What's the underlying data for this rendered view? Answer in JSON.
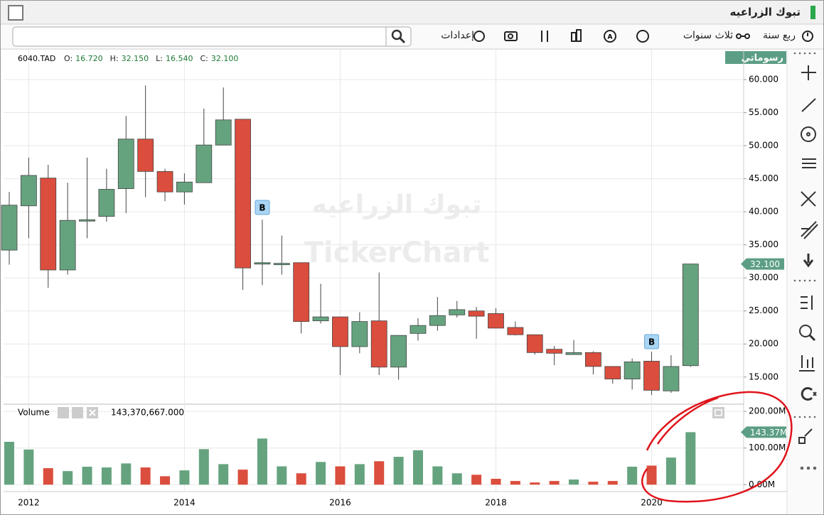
{
  "window": {
    "title": "تبوك الزراعيه"
  },
  "toolbar": {
    "period": "ربع سنة",
    "range": "ثلاث سنوات",
    "settings": "إعدادات"
  },
  "chart_data": [
    {
      "type": "candlestick",
      "symbol": "6040.TAD",
      "info": [
        {
          "label": "O:",
          "value": "16.720"
        },
        {
          "label": "H:",
          "value": "32.150"
        },
        {
          "label": "L:",
          "value": "16.540"
        },
        {
          "label": "C:",
          "value": "32.100"
        }
      ],
      "drawings_label": "رسوماتي",
      "watermark": [
        "تبوك الزراعيه",
        "TickerChart"
      ],
      "signals": [
        "B",
        "B"
      ],
      "last_price_label": "32.100",
      "categories": [
        null,
        "2012",
        null,
        null,
        null,
        null,
        null,
        null,
        null,
        "2014",
        null,
        null,
        null,
        null,
        null,
        null,
        null,
        "2016",
        null,
        null,
        null,
        null,
        null,
        null,
        null,
        "2018",
        null,
        null,
        null,
        null,
        null,
        null,
        null,
        "2020",
        null,
        null
      ],
      "open": [
        34.2,
        40.9,
        45.1,
        31.2,
        38.6,
        39.3,
        43.5,
        51.0,
        46.1,
        43.0,
        44.4,
        50.1,
        54.0,
        32.1,
        32.0,
        32.3,
        23.5,
        24.1,
        19.6,
        23.5,
        16.5,
        21.6,
        22.8,
        24.4,
        25.0,
        24.6,
        22.5,
        21.4,
        19.2,
        18.4,
        18.7,
        16.6,
        14.7,
        17.4,
        12.9,
        16.72
      ],
      "high": [
        43.0,
        48.2,
        47.1,
        44.4,
        48.2,
        46.5,
        54.5,
        59.1,
        46.5,
        45.8,
        55.6,
        58.8,
        54.0,
        38.8,
        36.4,
        32.3,
        29.1,
        24.1,
        24.8,
        30.8,
        21.3,
        23.9,
        27.1,
        26.5,
        25.6,
        25.4,
        23.4,
        21.4,
        19.7,
        20.6,
        18.9,
        16.6,
        17.8,
        18.8,
        18.3,
        32.15
      ],
      "low": [
        32.0,
        36.0,
        28.5,
        30.5,
        36.0,
        38.5,
        39.8,
        42.2,
        41.6,
        41.1,
        44.4,
        50.1,
        28.2,
        28.9,
        30.5,
        21.6,
        23.1,
        15.3,
        18.6,
        15.3,
        14.6,
        20.5,
        22.0,
        24.0,
        20.8,
        22.4,
        21.3,
        18.4,
        16.8,
        18.4,
        15.4,
        14.0,
        13.1,
        12.3,
        12.6,
        16.54
      ],
      "close": [
        41.0,
        45.5,
        31.2,
        38.7,
        38.8,
        43.4,
        51.0,
        46.1,
        43.0,
        44.5,
        50.1,
        53.9,
        31.5,
        32.3,
        32.2,
        23.4,
        24.1,
        19.6,
        23.4,
        16.5,
        21.3,
        22.8,
        24.3,
        25.2,
        24.2,
        22.4,
        21.4,
        18.7,
        18.6,
        18.7,
        16.6,
        14.7,
        17.3,
        13.0,
        16.6,
        32.1
      ],
      "up_color": "#65a37f",
      "down_color": "#db4d3d",
      "ylim": [
        11.0,
        64.3
      ],
      "yticks": [
        {
          "value": 15,
          "label": "15.000"
        },
        {
          "value": 20,
          "label": "20.000"
        },
        {
          "value": 25,
          "label": "25.000"
        },
        {
          "value": 30,
          "label": "30.000"
        },
        {
          "value": 35,
          "label": "35.000"
        },
        {
          "value": 40,
          "label": "40.000"
        },
        {
          "value": 45,
          "label": "45.000"
        },
        {
          "value": 50,
          "label": "50.000"
        },
        {
          "value": 55,
          "label": "55.000"
        },
        {
          "value": 60,
          "label": "60.000"
        }
      ],
      "grid": true
    },
    {
      "type": "bar",
      "title": "Volume",
      "total_label": "143,370,667.000",
      "last_value_label": "143.37M",
      "values": [
        117,
        96,
        45,
        37,
        49,
        47,
        58,
        47,
        23,
        39,
        97,
        56,
        41,
        126,
        50,
        31,
        62,
        50,
        56,
        64,
        76,
        94,
        50,
        31,
        27,
        16,
        10,
        6,
        10,
        14,
        8,
        10,
        49,
        52,
        74,
        143.37
      ],
      "ylim": [
        -15,
        214
      ],
      "yticks": [
        {
          "value": 0,
          "label": "0.00M"
        },
        {
          "value": 100,
          "label": "100.00M"
        },
        {
          "value": 200,
          "label": "200.00M"
        }
      ],
      "grid": true
    }
  ]
}
